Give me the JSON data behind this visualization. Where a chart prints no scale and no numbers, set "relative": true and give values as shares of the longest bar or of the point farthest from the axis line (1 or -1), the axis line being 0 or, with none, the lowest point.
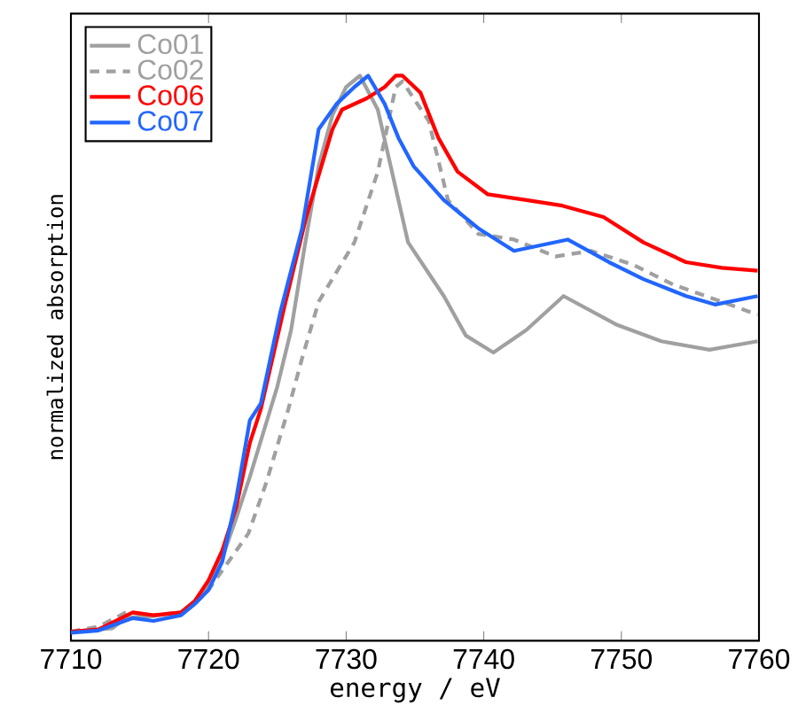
{
  "chart_data": {
    "type": "line",
    "relative": true,
    "xlabel": "energy / eV",
    "ylabel": "normalized absorption",
    "xlim": [
      7710,
      7760
    ],
    "xticks": [
      7710,
      7720,
      7730,
      7740,
      7750,
      7760
    ],
    "legend": "top left",
    "series": [
      {
        "name": "Co01",
        "color": "#a0a0a0",
        "line_style": "solid",
        "x": [
          7710,
          7713,
          7714,
          7716,
          7718,
          7719,
          7720,
          7721,
          7722,
          7723,
          7724,
          7725,
          7726,
          7727,
          7728,
          7729,
          7730,
          7731,
          7732.3,
          7734.5,
          7737.1,
          7738.7,
          7740.7,
          7743.1,
          7745.8,
          7749.6,
          7752.9,
          7756.4,
          7759.9
        ],
        "values": [
          0.016,
          0.022,
          0.04,
          0.044,
          0.05,
          0.07,
          0.1,
          0.147,
          0.216,
          0.29,
          0.37,
          0.45,
          0.55,
          0.7,
          0.84,
          0.93,
          0.98,
          1.0,
          0.94,
          0.705,
          0.61,
          0.54,
          0.51,
          0.55,
          0.61,
          0.56,
          0.53,
          0.515,
          0.53
        ]
      },
      {
        "name": "Co02",
        "color": "#a0a0a0",
        "line_style": "dashed",
        "x": [
          7710,
          7712,
          7714,
          7716,
          7718,
          7719,
          7720,
          7722.9,
          7724.2,
          7725.8,
          7726.8,
          7728,
          7730.6,
          7732.3,
          7733.6,
          7734.1,
          7734.9,
          7736,
          7736.7,
          7737.4,
          7739.6,
          7742.2,
          7745.2,
          7747.8,
          7750.9,
          7753.8,
          7757.3,
          7759.9
        ],
        "values": [
          0.016,
          0.025,
          0.05,
          0.045,
          0.05,
          0.065,
          0.09,
          0.19,
          0.28,
          0.41,
          0.5,
          0.6,
          0.705,
          0.83,
          0.98,
          0.99,
          0.96,
          0.92,
          0.85,
          0.78,
          0.72,
          0.71,
          0.68,
          0.69,
          0.665,
          0.63,
          0.6,
          0.577
        ]
      },
      {
        "name": "Co06",
        "color": "#ff0000",
        "line_style": "solid",
        "x": [
          7710,
          7712,
          7714.5,
          7716,
          7718,
          7719,
          7720,
          7721,
          7722,
          7723,
          7723.8,
          7725.5,
          7727.1,
          7729,
          7729.7,
          7731.5,
          7732.8,
          7733.6,
          7734.1,
          7735.4,
          7736.7,
          7738.1,
          7740.3,
          7743.1,
          7745.7,
          7748.7,
          7751.6,
          7754.7,
          7757.3,
          7759.9
        ],
        "values": [
          0.016,
          0.02,
          0.05,
          0.045,
          0.05,
          0.07,
          0.107,
          0.16,
          0.235,
          0.35,
          0.41,
          0.59,
          0.75,
          0.905,
          0.94,
          0.96,
          0.98,
          1.0,
          1.0,
          0.97,
          0.89,
          0.83,
          0.79,
          0.78,
          0.77,
          0.75,
          0.705,
          0.67,
          0.66,
          0.655
        ]
      },
      {
        "name": "Co07",
        "color": "#2266ff",
        "line_style": "solid",
        "x": [
          7710,
          7712,
          7714.5,
          7716,
          7718,
          7719,
          7720,
          7721,
          7722,
          7723,
          7723.8,
          7725.2,
          7726.8,
          7728,
          7729.3,
          7730.6,
          7731.6,
          7732.8,
          7733.8,
          7734.9,
          7737.1,
          7739.6,
          7742.2,
          7746.1,
          7749.1,
          7751.6,
          7754.7,
          7756.8,
          7759.9
        ],
        "values": [
          0.014,
          0.018,
          0.04,
          0.035,
          0.045,
          0.065,
          0.09,
          0.14,
          0.25,
          0.39,
          0.42,
          0.58,
          0.73,
          0.905,
          0.95,
          0.98,
          1.0,
          0.95,
          0.89,
          0.84,
          0.78,
          0.73,
          0.69,
          0.71,
          0.67,
          0.64,
          0.61,
          0.595,
          0.61
        ]
      }
    ]
  }
}
